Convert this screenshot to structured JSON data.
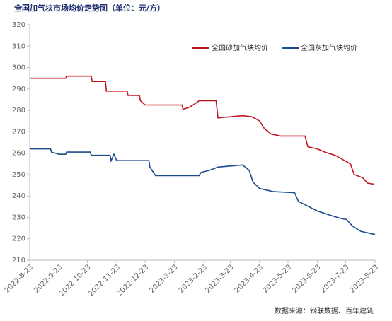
{
  "chart_data": {
    "type": "line",
    "title": "全国加气块市场均价走势图（单位：元/方）",
    "source": "数据来源：钢联数据、百年建筑",
    "xlim": [
      "2022-8-23",
      "2023-8-23"
    ],
    "xticks": [
      "2022-8-23",
      "2022-9-23",
      "2022-10-23",
      "2022-11-23",
      "2022-12-23",
      "2023-1-23",
      "2023-2-23",
      "2023-3-23",
      "2023-4-23",
      "2023-5-23",
      "2023-6-23",
      "2023-7-23",
      "2023-8-23"
    ],
    "ylim": [
      210,
      320
    ],
    "yticks": [
      210,
      220,
      230,
      240,
      250,
      260,
      270,
      280,
      290,
      300,
      310,
      320
    ],
    "legend": "upper right",
    "series": [
      {
        "name": "全国砂加气块均价",
        "color": "#c0151f",
        "x": [
          "2022-8-23",
          "2022-9-30",
          "2022-10-1",
          "2022-10-27",
          "2022-10-28",
          "2022-11-11",
          "2022-11-12",
          "2022-12-4",
          "2022-12-5",
          "2022-12-17",
          "2022-12-18",
          "2022-12-23",
          "2023-1-31",
          "2023-2-1",
          "2023-2-8",
          "2023-2-15",
          "2023-2-18",
          "2023-3-8",
          "2023-3-10",
          "2023-3-23",
          "2023-4-5",
          "2023-4-15",
          "2023-4-23",
          "2023-4-28",
          "2023-5-5",
          "2023-5-15",
          "2023-6-10",
          "2023-6-13",
          "2023-6-23",
          "2023-7-1",
          "2023-7-12",
          "2023-7-18",
          "2023-7-28",
          "2023-8-1",
          "2023-8-10",
          "2023-8-15",
          "2023-8-22"
        ],
        "values": [
          295,
          295,
          296,
          296,
          293.5,
          293.5,
          289,
          289,
          287,
          287,
          284.5,
          282.5,
          282.5,
          280.5,
          281.5,
          283.5,
          284.5,
          284.5,
          276.5,
          277,
          277.5,
          277,
          275,
          271.5,
          269,
          268,
          268,
          263,
          262,
          260.5,
          259,
          257.5,
          255,
          250,
          248.5,
          246,
          245.5
        ]
      },
      {
        "name": "全国灰加气块均价",
        "color": "#1b4b8c",
        "x": [
          "2022-8-23",
          "2022-9-14",
          "2022-9-15",
          "2022-9-23",
          "2022-9-30",
          "2022-10-1",
          "2022-10-26",
          "2022-10-27",
          "2022-11-16",
          "2022-11-17",
          "2022-11-20",
          "2022-11-23",
          "2022-12-27",
          "2022-12-28",
          "2023-1-3",
          "2023-2-18",
          "2023-2-20",
          "2023-3-1",
          "2023-3-10",
          "2023-3-23",
          "2023-4-5",
          "2023-4-12",
          "2023-4-16",
          "2023-4-23",
          "2023-5-8",
          "2023-5-30",
          "2023-6-3",
          "2023-6-23",
          "2023-7-10",
          "2023-7-18",
          "2023-7-24",
          "2023-7-30",
          "2023-8-8",
          "2023-8-23"
        ],
        "values": [
          262,
          262,
          260.5,
          259.5,
          259.5,
          260.5,
          260.5,
          259,
          259,
          256.5,
          259.5,
          256.5,
          256.5,
          253.5,
          249.5,
          249.5,
          251,
          252,
          253.5,
          254,
          254.5,
          252,
          246.5,
          243.5,
          242,
          241.5,
          237.5,
          233,
          230.5,
          229.5,
          229,
          226,
          223.5,
          222
        ]
      }
    ]
  }
}
